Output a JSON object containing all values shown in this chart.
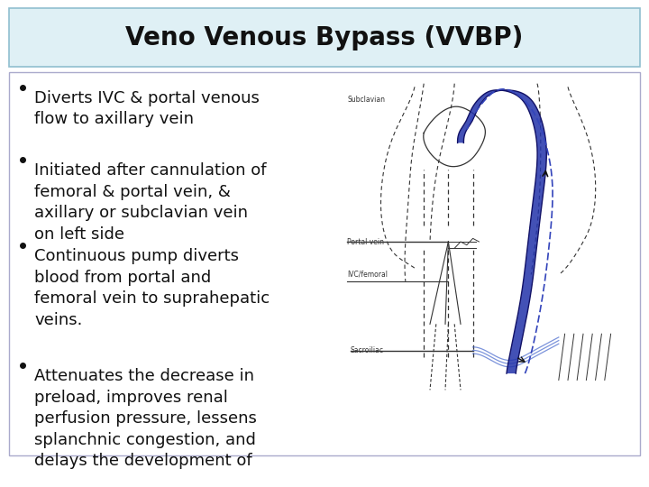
{
  "title": "Veno Venous Bypass (VVBP)",
  "title_fontsize": 20,
  "bg_color": "#ffffff",
  "title_box_color": "#dff0f5",
  "title_box_edge": "#90bfcf",
  "content_box_edge": "#aaaacc",
  "bullet_points": [
    "Diverts IVC & portal venous\nflow to axillary vein",
    "Initiated after cannulation of\nfemoral & portal vein, &\naxillary or subclavian vein\non left side",
    "Continuous pump diverts\nblood from portal and\nfemoral vein to suprahepatic\nveins.",
    "Attenuates the decrease in\npreload, improves renal\nperfusion pressure, lessens\nsplanchnic congestion, and\ndelays the development of"
  ],
  "bullet_fontsize": 13,
  "text_color": "#111111",
  "blue_tube_color": "#2233aa",
  "diagram_line_color": "#333333",
  "label_fontsize": 5.5,
  "labels": {
    "subclavian": "Subclavian",
    "portal": "Portal vein",
    "ivc": "IVC/femoral",
    "sacroiliac": "Sacroiliac"
  }
}
